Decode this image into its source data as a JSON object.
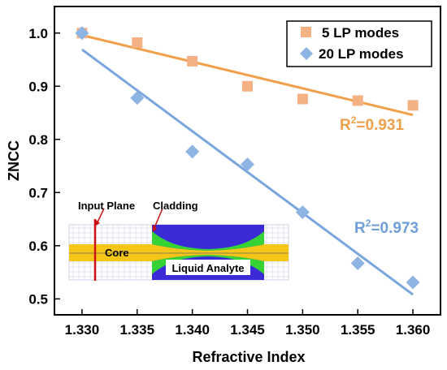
{
  "chart_data": {
    "type": "scatter",
    "xlabel": "Refractive Index",
    "ylabel": "ZNCC",
    "xlim": [
      1.3275,
      1.3625
    ],
    "ylim": [
      0.47,
      1.05
    ],
    "x_ticks": [
      "1.330",
      "1.335",
      "1.340",
      "1.345",
      "1.350",
      "1.355",
      "1.360"
    ],
    "y_ticks": [
      "0.5",
      "0.6",
      "0.7",
      "0.8",
      "0.9",
      "1.0"
    ],
    "legend_position": "top-right",
    "series": [
      {
        "name": "5 LP modes",
        "marker": "square",
        "color": "#F4B183",
        "line_color": "#F0A04B",
        "x": [
          1.33,
          1.335,
          1.34,
          1.345,
          1.35,
          1.355,
          1.36
        ],
        "y": [
          1.0,
          0.982,
          0.947,
          0.9,
          0.876,
          0.873,
          0.864
        ],
        "fit": {
          "x": [
            1.33,
            1.36
          ],
          "y": [
            0.996,
            0.846
          ]
        },
        "r2_label": "R",
        "r2_sup": "2",
        "r2_value": "=0.931"
      },
      {
        "name": "20 LP modes",
        "marker": "diamond",
        "color": "#8EB4E3",
        "line_color": "#7AA6DE",
        "x": [
          1.33,
          1.335,
          1.34,
          1.345,
          1.35,
          1.355,
          1.36
        ],
        "y": [
          1.0,
          0.878,
          0.777,
          0.753,
          0.663,
          0.567,
          0.531
        ],
        "fit": {
          "x": [
            1.33,
            1.36
          ],
          "y": [
            0.969,
            0.508
          ]
        },
        "r2_label": "R",
        "r2_sup": "2",
        "r2_value": "=0.973"
      }
    ],
    "inset": {
      "labels": {
        "input_plane": "Input Plane",
        "cladding": "Cladding",
        "core": "Core",
        "liquid_analyte": "Liquid Analyte"
      },
      "colors": {
        "core": "#F5C518",
        "cladding": "#3A2BD6",
        "transition": "#35D335",
        "input_plane": "#CC1111",
        "grid": "#C8C8E6"
      }
    }
  }
}
